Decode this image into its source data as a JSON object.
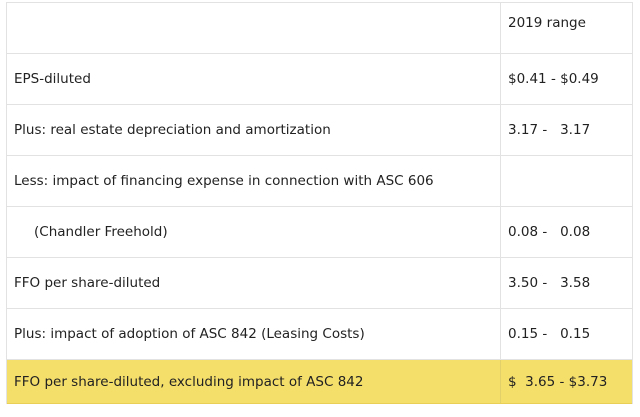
{
  "table": {
    "header": {
      "label": "",
      "value": "2019 range"
    },
    "rows": [
      {
        "label": "EPS-diluted",
        "value": "$0.41 - $0.49"
      },
      {
        "label": "Plus: real estate depreciation and amortization",
        "value": "3.17 -   3.17"
      },
      {
        "label": "Less: impact of financing expense in connection with ASC 606",
        "value": ""
      },
      {
        "label": "(Chandler Freehold)",
        "value": "0.08 -   0.08"
      },
      {
        "label": "FFO per share-diluted",
        "value": "3.50 -   3.58"
      },
      {
        "label": "Plus: impact of adoption of ASC 842 (Leasing Costs)",
        "value": "0.15 -   0.15"
      },
      {
        "label": "FFO per share-diluted, excluding impact of ASC 842",
        "value": "$  3.65 - $3.73"
      }
    ]
  },
  "colors": {
    "highlight": "#f5df6b",
    "border": "#e2e2e2",
    "text": "#222222"
  }
}
